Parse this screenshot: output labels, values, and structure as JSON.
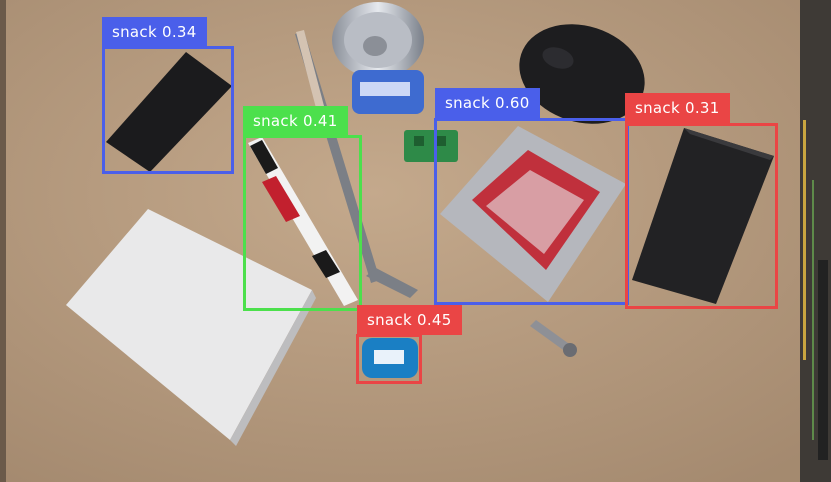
{
  "image": {
    "description_free": true
  },
  "colors": {
    "blue": "#4a5fea",
    "green": "#4ce04c",
    "red": "#ea4545"
  },
  "detections": [
    {
      "label": "snack 0.34",
      "color": "blue"
    },
    {
      "label": "snack 0.41",
      "color": "green"
    },
    {
      "label": "snack 0.60",
      "color": "blue"
    },
    {
      "label": "snack 0.31",
      "color": "red"
    },
    {
      "label": "snack 0.45",
      "color": "red"
    }
  ]
}
